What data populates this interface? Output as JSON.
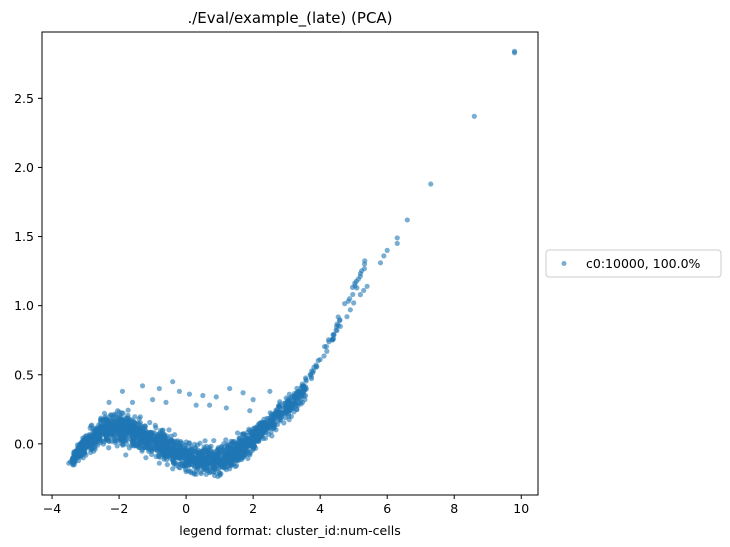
{
  "chart_data": {
    "type": "scatter",
    "title": "./Eval/example_(late) (PCA)",
    "xlabel": "legend format:  cluster_id:num-cells",
    "ylabel": "",
    "xlim": [
      -4.3,
      10.5
    ],
    "ylim": [
      -0.37,
      2.98
    ],
    "xticks": [
      -4,
      -2,
      0,
      2,
      4,
      6,
      8,
      10
    ],
    "yticks": [
      0.0,
      0.5,
      1.0,
      1.5,
      2.0,
      2.5
    ],
    "xtick_labels": [
      "−4",
      "−2",
      "0",
      "2",
      "4",
      "6",
      "8",
      "10"
    ],
    "ytick_labels": [
      "0.0",
      "0.5",
      "1.0",
      "1.5",
      "2.0",
      "2.5"
    ],
    "grid": false,
    "legend": {
      "placement": "outside-right",
      "entries": [
        "c0:10000, 100.0%"
      ]
    },
    "series": [
      {
        "name": "c0:10000, 100.0%",
        "color": "#1f77b4",
        "alpha": 0.6,
        "main_band": {
          "x_range": [
            -3.4,
            2.4
          ],
          "center_curve": [
            [
              -3.4,
              -0.12
            ],
            [
              -3.0,
              0.0
            ],
            [
              -2.5,
              0.09
            ],
            [
              -2.0,
              0.12
            ],
            [
              -1.5,
              0.08
            ],
            [
              -1.0,
              0.02
            ],
            [
              -0.5,
              -0.04
            ],
            [
              0.0,
              -0.09
            ],
            [
              0.5,
              -0.12
            ],
            [
              1.0,
              -0.11
            ],
            [
              1.5,
              -0.05
            ],
            [
              2.0,
              0.04
            ],
            [
              2.4,
              0.13
            ]
          ],
          "half_width_y": 0.09
        },
        "arm_points": [
          [
            2.5,
            0.17
          ],
          [
            2.7,
            0.22
          ],
          [
            2.9,
            0.27
          ],
          [
            3.1,
            0.32
          ],
          [
            3.3,
            0.37
          ],
          [
            3.5,
            0.42
          ],
          [
            3.7,
            0.5
          ],
          [
            3.9,
            0.56
          ],
          [
            4.0,
            0.61
          ],
          [
            4.2,
            0.67
          ],
          [
            4.4,
            0.76
          ],
          [
            4.5,
            0.82
          ],
          [
            4.6,
            0.85
          ],
          [
            4.8,
            0.92
          ],
          [
            4.9,
            0.97
          ],
          [
            5.0,
            1.02
          ],
          [
            5.2,
            1.08
          ],
          [
            5.3,
            1.11
          ],
          [
            5.4,
            1.14
          ],
          [
            5.8,
            1.31
          ],
          [
            5.9,
            1.36
          ],
          [
            6.0,
            1.4
          ],
          [
            6.3,
            1.45
          ],
          [
            6.3,
            1.49
          ],
          [
            6.6,
            1.62
          ],
          [
            7.3,
            1.88
          ],
          [
            8.6,
            2.37
          ],
          [
            9.8,
            2.83
          ],
          [
            9.8,
            2.84
          ]
        ],
        "scattered_above": [
          [
            -1.9,
            0.38
          ],
          [
            -1.3,
            0.42
          ],
          [
            -0.8,
            0.4
          ],
          [
            -0.4,
            0.45
          ],
          [
            -0.2,
            0.38
          ],
          [
            0.1,
            0.36
          ],
          [
            0.5,
            0.35
          ],
          [
            0.9,
            0.34
          ],
          [
            1.3,
            0.4
          ],
          [
            1.7,
            0.37
          ],
          [
            2.0,
            0.32
          ],
          [
            2.5,
            0.38
          ],
          [
            1.9,
            0.24
          ],
          [
            -1.0,
            0.32
          ],
          [
            0.3,
            0.28
          ],
          [
            -2.3,
            0.3
          ],
          [
            -1.6,
            0.3
          ],
          [
            0.7,
            0.28
          ],
          [
            1.2,
            0.26
          ],
          [
            -0.6,
            0.3
          ]
        ],
        "scattered_below": [
          [
            -3.5,
            -0.14
          ],
          [
            -3.45,
            -0.13
          ],
          [
            -0.4,
            -0.18
          ],
          [
            0.0,
            -0.2
          ],
          [
            0.3,
            -0.22
          ],
          [
            0.6,
            -0.22
          ],
          [
            1.0,
            -0.21
          ],
          [
            1.3,
            -0.18
          ],
          [
            -1.8,
            -0.08
          ],
          [
            -1.2,
            -0.1
          ],
          [
            -0.8,
            -0.14
          ]
        ]
      }
    ]
  }
}
